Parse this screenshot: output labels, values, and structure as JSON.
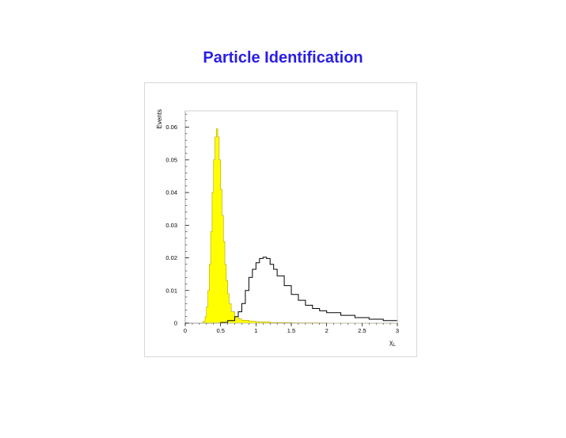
{
  "slide": {
    "title": "Particle Identification"
  },
  "chart_data": {
    "type": "area",
    "title": "",
    "xlabel_main": "χ",
    "xlabel_sub": "L",
    "ylabel": "Events",
    "xlim": [
      0,
      3
    ],
    "ylim": [
      0,
      0.065
    ],
    "xticks": [
      "0",
      "0.5",
      "1",
      "1.5",
      "2",
      "2.5",
      "3"
    ],
    "yticks": [
      "0",
      "0.01",
      "0.02",
      "0.03",
      "0.04",
      "0.05",
      "0.06"
    ],
    "grid": false,
    "fill_color": "#ffff00",
    "line_color": "#000000",
    "series": [
      {
        "style": "filled",
        "x": [
          0.0,
          0.2,
          0.25,
          0.28,
          0.3,
          0.32,
          0.34,
          0.36,
          0.38,
          0.4,
          0.42,
          0.44,
          0.46,
          0.48,
          0.5,
          0.52,
          0.54,
          0.56,
          0.58,
          0.6,
          0.62,
          0.65,
          0.7,
          0.75,
          0.8,
          0.9,
          1.0,
          1.2,
          1.5,
          2.0,
          2.5,
          3.0
        ],
        "y": [
          0.0,
          0.0,
          0.0005,
          0.002,
          0.005,
          0.01,
          0.018,
          0.028,
          0.04,
          0.05,
          0.057,
          0.0595,
          0.057,
          0.05,
          0.041,
          0.033,
          0.025,
          0.018,
          0.013,
          0.009,
          0.006,
          0.0035,
          0.002,
          0.0013,
          0.0009,
          0.0006,
          0.0004,
          0.0002,
          0.0001,
          5e-05,
          0.0,
          0.0
        ]
      },
      {
        "style": "outline",
        "x": [
          0.0,
          0.3,
          0.5,
          0.6,
          0.7,
          0.75,
          0.8,
          0.85,
          0.9,
          0.95,
          1.0,
          1.05,
          1.1,
          1.15,
          1.2,
          1.25,
          1.3,
          1.4,
          1.5,
          1.6,
          1.7,
          1.8,
          1.9,
          2.0,
          2.2,
          2.4,
          2.6,
          2.8,
          3.0
        ],
        "y": [
          0.0,
          0.0,
          0.0002,
          0.0008,
          0.002,
          0.0035,
          0.006,
          0.01,
          0.014,
          0.0165,
          0.0185,
          0.0198,
          0.0202,
          0.0198,
          0.018,
          0.0165,
          0.0145,
          0.0115,
          0.0088,
          0.007,
          0.0055,
          0.0045,
          0.0038,
          0.0032,
          0.0024,
          0.0017,
          0.0012,
          0.0008,
          0.0005
        ]
      }
    ]
  }
}
